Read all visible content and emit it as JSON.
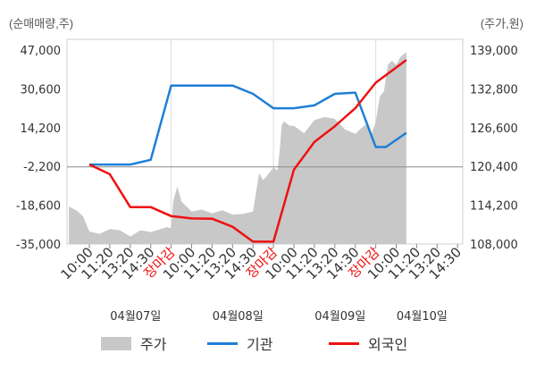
{
  "units": {
    "left": "(순매매량,주)",
    "right": "(주가,원)"
  },
  "legend": [
    {
      "label": "주가",
      "kind": "area",
      "color": "#c8c8c8"
    },
    {
      "label": "기관",
      "kind": "line",
      "color": "#1f7fd6"
    },
    {
      "label": "외국인",
      "kind": "line",
      "color": "#ee1111"
    }
  ],
  "chart_data": {
    "type": "line",
    "left_axis": {
      "ticks": [
        "47,000",
        "30,600",
        "14,200",
        "-2,200",
        "-18,600",
        "-35,000"
      ],
      "range": [
        -35000,
        47000
      ]
    },
    "right_axis": {
      "ticks": [
        "139,000",
        "132,800",
        "126,600",
        "120,400",
        "114,200",
        "108,000"
      ],
      "range": [
        108000,
        139000
      ]
    },
    "x_ticks": [
      {
        "label": "10:00",
        "color": "#333333"
      },
      {
        "label": "11:20",
        "color": "#333333"
      },
      {
        "label": "13:20",
        "color": "#333333"
      },
      {
        "label": "14:30",
        "color": "#333333"
      },
      {
        "label": "장마감",
        "color": "#ee1111"
      },
      {
        "label": "10:00",
        "color": "#333333"
      },
      {
        "label": "11:20",
        "color": "#333333"
      },
      {
        "label": "13:20",
        "color": "#333333"
      },
      {
        "label": "14:30",
        "color": "#333333"
      },
      {
        "label": "장마감",
        "color": "#ee1111"
      },
      {
        "label": "10:00",
        "color": "#333333"
      },
      {
        "label": "11:20",
        "color": "#333333"
      },
      {
        "label": "13:20",
        "color": "#333333"
      },
      {
        "label": "14:30",
        "color": "#333333"
      },
      {
        "label": "장마감",
        "color": "#ee1111"
      },
      {
        "label": "10:00",
        "color": "#333333"
      },
      {
        "label": "11:20",
        "color": "#333333"
      },
      {
        "label": "13:20",
        "color": "#333333"
      },
      {
        "label": "14:30",
        "color": "#333333"
      }
    ],
    "dates": [
      {
        "label": "04월07일",
        "tick": 2
      },
      {
        "label": "04월08일",
        "tick": 7
      },
      {
        "label": "04월09일",
        "tick": 12
      },
      {
        "label": "04월10일",
        "tick": 16
      }
    ],
    "series": [
      {
        "name": "기관",
        "axis": "left",
        "color": "#1f7fd6",
        "x": [
          0,
          1,
          2,
          3,
          4,
          5,
          6,
          7,
          8,
          9,
          10,
          11,
          12,
          13,
          14,
          14.5,
          15.5
        ],
        "y": [
          -1400,
          -1400,
          -1400,
          600,
          32000,
          32000,
          32000,
          32000,
          28500,
          22400,
          22400,
          23600,
          28500,
          29000,
          6000,
          6000,
          12000
        ]
      },
      {
        "name": "외국인",
        "axis": "left",
        "color": "#ee1111",
        "x": [
          0,
          1,
          2,
          3,
          4,
          5,
          6,
          7,
          8,
          9,
          10,
          11,
          12,
          13,
          14,
          15.5
        ],
        "y": [
          -1400,
          -5500,
          -19400,
          -19400,
          -23200,
          -24200,
          -24300,
          -27700,
          -34000,
          -34000,
          -3600,
          8100,
          14800,
          22400,
          33200,
          42800
        ]
      },
      {
        "name": "주가",
        "axis": "right",
        "color": "#c8c8c8",
        "x": [
          -1,
          -0.6,
          -0.3,
          0,
          0.5,
          1,
          1.5,
          2,
          2.5,
          3,
          3.4,
          3.8,
          4.0,
          4.1,
          4.3,
          4.5,
          5,
          5.5,
          6,
          6.5,
          7,
          7.5,
          8,
          8.3,
          8.5,
          8.8,
          9,
          9.2,
          9.3,
          9.4,
          9.5,
          9.8,
          10,
          10.5,
          11,
          11.5,
          12,
          12.5,
          13,
          13.5,
          13.8,
          14,
          14.2,
          14.4,
          14.6,
          14.8,
          15,
          15.2,
          15.5
        ],
        "y": [
          114000,
          113300,
          112400,
          110000,
          109600,
          110400,
          110200,
          109200,
          110200,
          109900,
          110300,
          110700,
          110500,
          114800,
          117200,
          114800,
          113200,
          113500,
          112900,
          113400,
          112700,
          112800,
          113200,
          119300,
          118200,
          119400,
          120200,
          119800,
          122800,
          126900,
          127600,
          126900,
          126900,
          125700,
          127800,
          128300,
          128000,
          126300,
          125600,
          127100,
          125600,
          127500,
          131600,
          132400,
          136700,
          137300,
          136600,
          137900,
          138700
        ]
      }
    ]
  }
}
